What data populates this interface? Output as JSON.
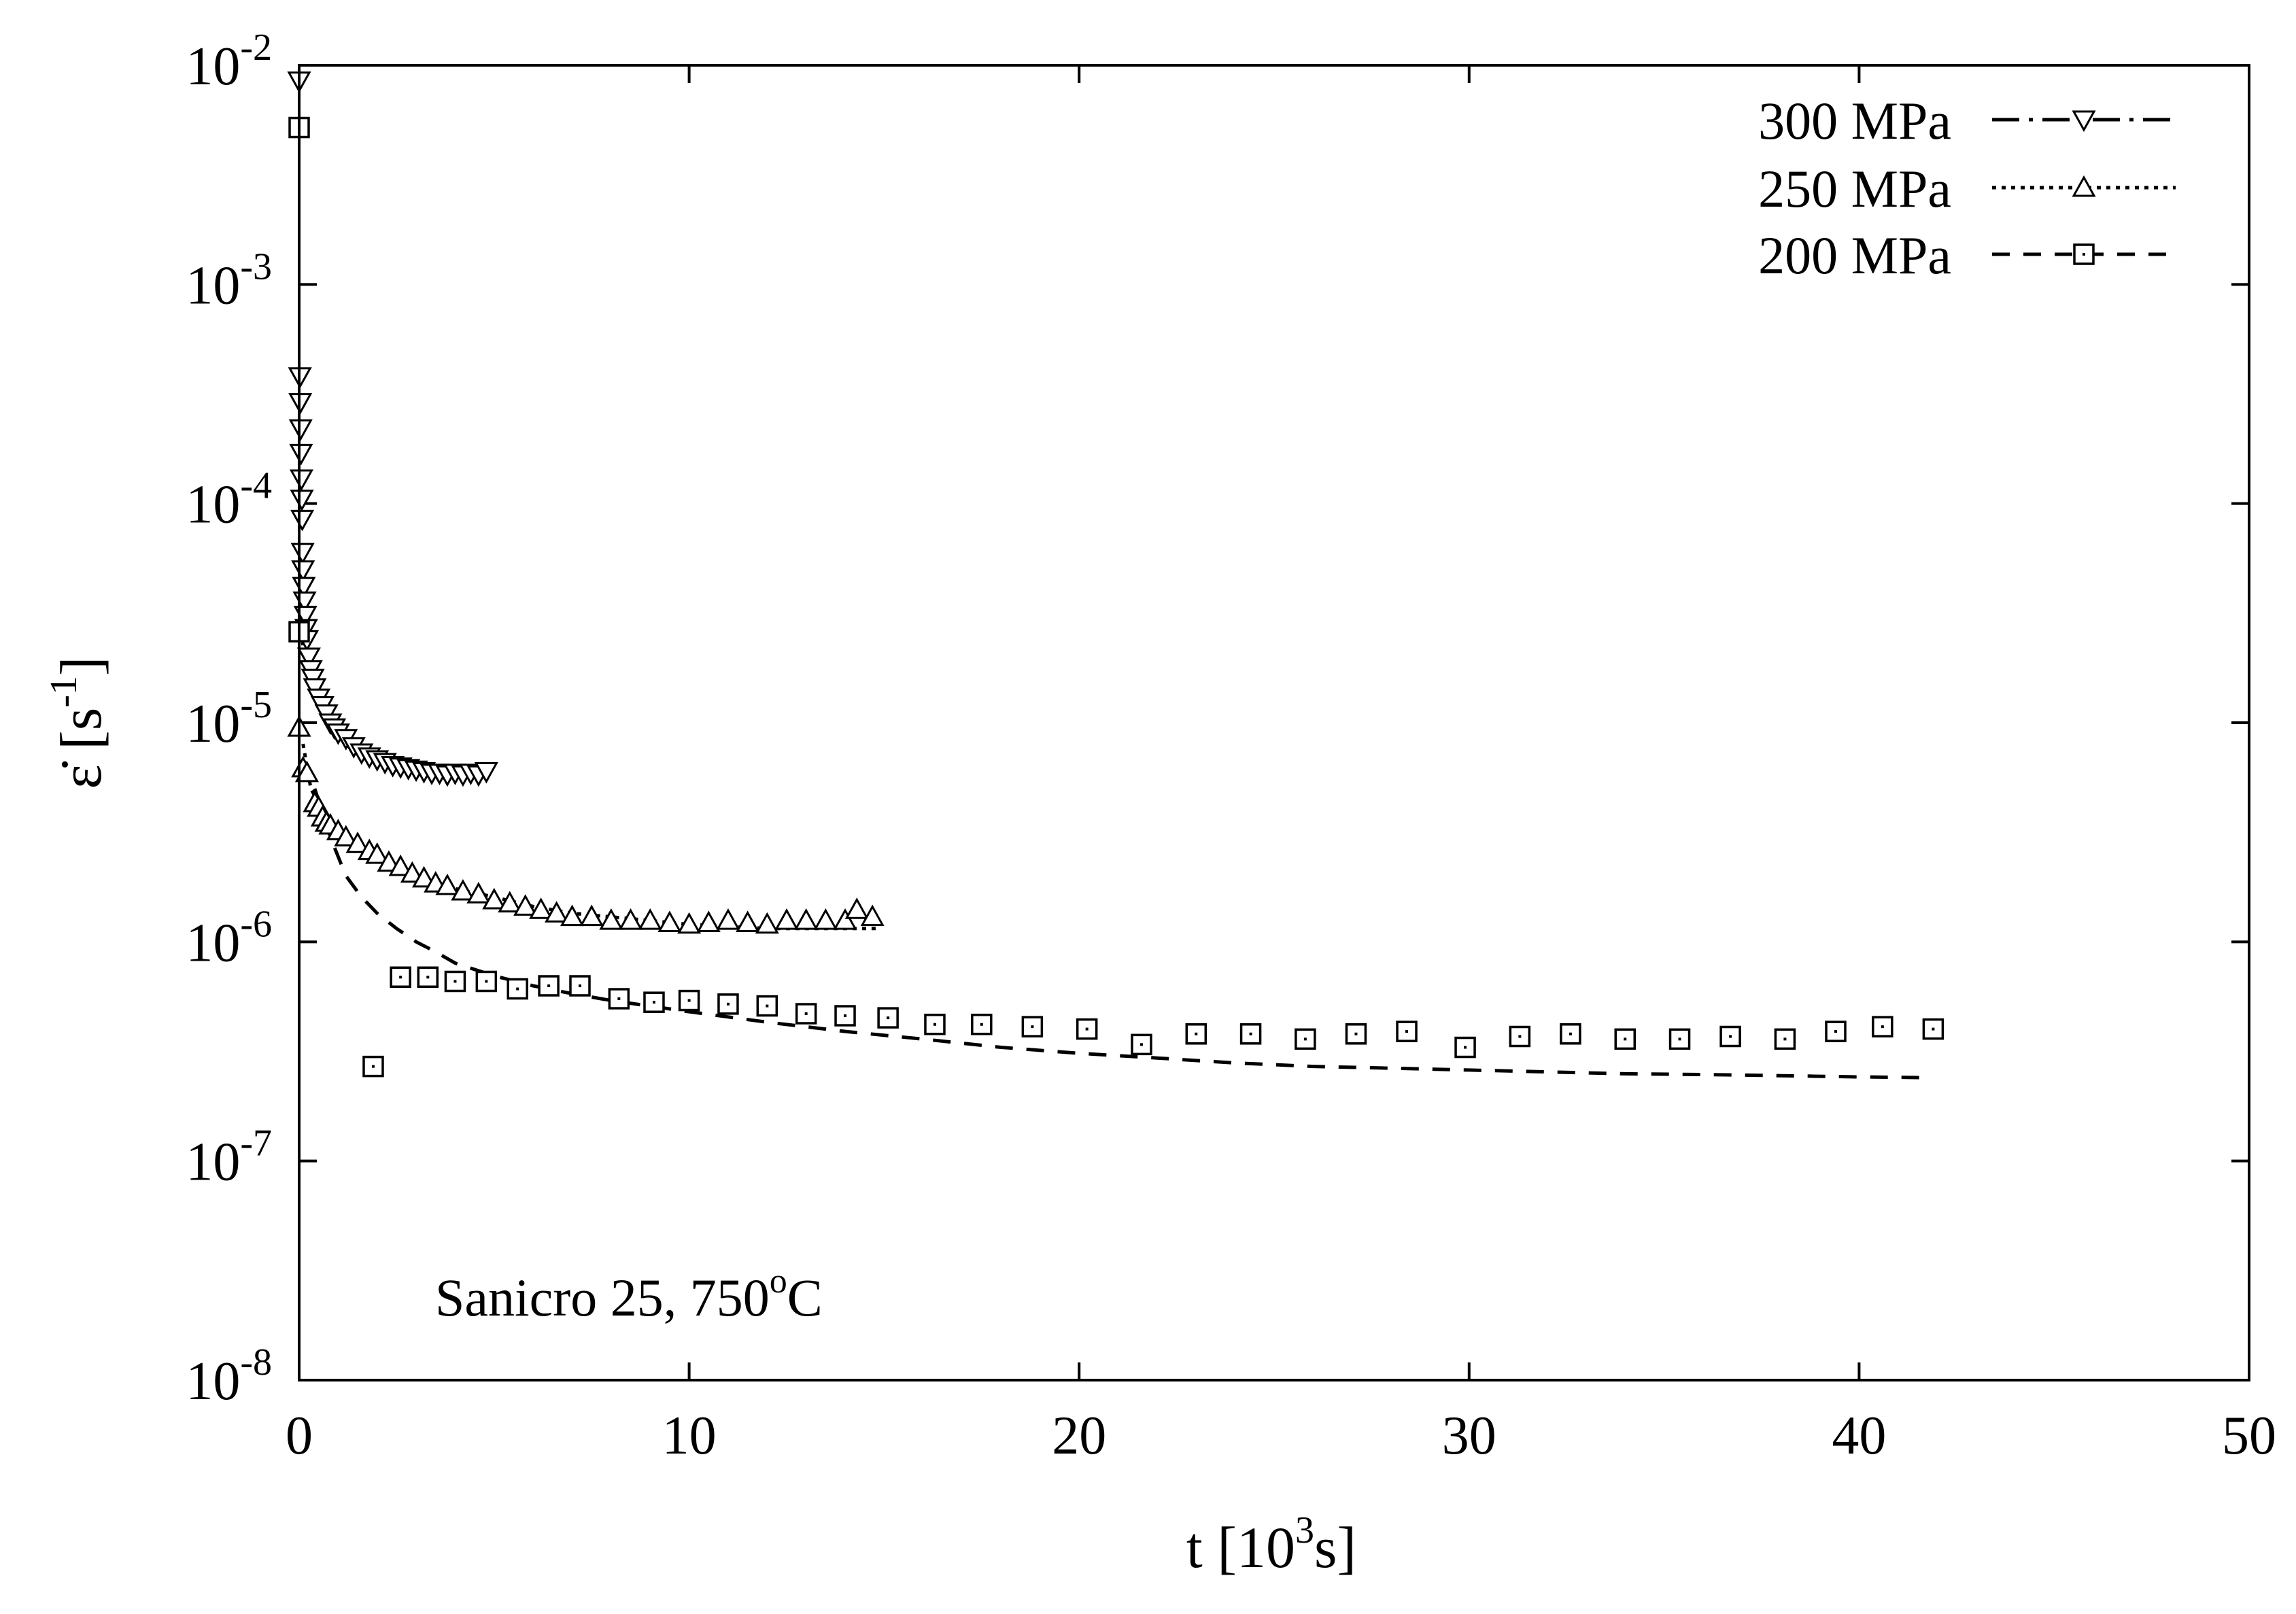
{
  "chart_data": {
    "type": "scatter",
    "xlabel": {
      "text": "t [10",
      "sup": "3",
      "tail": "s]"
    },
    "ylabel": {
      "text": "ε̇ [s",
      "sup": "-1",
      "tail": "]"
    },
    "xlim": [
      0,
      50
    ],
    "ylim": [
      1e-08,
      0.01
    ],
    "yscale": "log",
    "x_ticks": [
      "0",
      "10",
      "20",
      "30",
      "40",
      "50"
    ],
    "y_ticks": [
      {
        "base": "10",
        "exp": "-8"
      },
      {
        "base": "10",
        "exp": "-7"
      },
      {
        "base": "10",
        "exp": "-6"
      },
      {
        "base": "10",
        "exp": "-5"
      },
      {
        "base": "10",
        "exp": "-4"
      },
      {
        "base": "10",
        "exp": "-3"
      },
      {
        "base": "10",
        "exp": "-2"
      }
    ],
    "annotation": {
      "text": "Sanicro 25, 750",
      "sup": "o",
      "tail": "C"
    },
    "legend_position": "top-right",
    "grid": false,
    "series": [
      {
        "name": "300 MPa",
        "marker": "triangle-down",
        "line": "dash-dot",
        "x": [
          0.0,
          0.02,
          0.03,
          0.04,
          0.05,
          0.06,
          0.07,
          0.08,
          0.09,
          0.1,
          0.12,
          0.14,
          0.16,
          0.18,
          0.2,
          0.25,
          0.3,
          0.35,
          0.4,
          0.5,
          0.6,
          0.7,
          0.8,
          0.9,
          1.0,
          1.2,
          1.4,
          1.6,
          1.8,
          2.0,
          2.2,
          2.4,
          2.6,
          2.8,
          3.0,
          3.2,
          3.4,
          3.6,
          3.8,
          4.0,
          4.2,
          4.4,
          4.6,
          4.8
        ],
        "y": [
          0.0085,
          0.00038,
          0.00029,
          0.00022,
          0.00017,
          0.00013,
          0.000105,
          8.5e-05,
          6e-05,
          5e-05,
          4.2e-05,
          3.6e-05,
          3.1e-05,
          2.7e-05,
          2.4e-05,
          2e-05,
          1.75e-05,
          1.6e-05,
          1.45e-05,
          1.3e-05,
          1.2e-05,
          1.1e-05,
          1e-05,
          9.5e-06,
          9e-06,
          8.5e-06,
          7.8e-06,
          7.3e-06,
          7e-06,
          6.8e-06,
          6.6e-06,
          6.4e-06,
          6.3e-06,
          6.2e-06,
          6.1e-06,
          6e-06,
          5.9e-06,
          5.9e-06,
          5.8e-06,
          5.9e-06,
          5.8e-06,
          5.9e-06,
          5.8e-06,
          6e-06
        ],
        "fit_x": [
          0.05,
          0.1,
          0.2,
          0.4,
          0.7,
          1.0,
          1.5,
          2.0,
          2.5,
          3.0,
          3.5,
          4.0,
          4.5
        ],
        "fit_y": [
          3e-05,
          2.2e-05,
          1.7e-05,
          1.3e-05,
          1.05e-05,
          9e-06,
          7.5e-06,
          6.8e-06,
          6.3e-06,
          6e-06,
          5.9e-06,
          5.8e-06,
          5.8e-06
        ]
      },
      {
        "name": "250 MPa",
        "marker": "triangle-up",
        "line": "dotted",
        "x": [
          0.0,
          0.1,
          0.2,
          0.4,
          0.5,
          0.6,
          0.7,
          0.8,
          1.0,
          1.2,
          1.5,
          1.8,
          2.0,
          2.3,
          2.6,
          2.9,
          3.2,
          3.5,
          3.8,
          4.2,
          4.6,
          5.0,
          5.4,
          5.8,
          6.2,
          6.6,
          7.0,
          7.5,
          8.0,
          8.5,
          9.0,
          9.5,
          10.0,
          10.5,
          11.0,
          11.5,
          12.0,
          12.5,
          13.0,
          13.5,
          14.0,
          14.3,
          14.7
        ],
        "y": [
          9.5e-06,
          6.2e-06,
          5.9e-06,
          4.3e-06,
          4.1e-06,
          3.7e-06,
          3.5e-06,
          3.4e-06,
          3.2e-06,
          3e-06,
          2.8e-06,
          2.6e-06,
          2.5e-06,
          2.3e-06,
          2.2e-06,
          2.05e-06,
          1.95e-06,
          1.85e-06,
          1.8e-06,
          1.7e-06,
          1.65e-06,
          1.55e-06,
          1.5e-06,
          1.45e-06,
          1.4e-06,
          1.35e-06,
          1.3e-06,
          1.3e-06,
          1.25e-06,
          1.25e-06,
          1.25e-06,
          1.22e-06,
          1.2e-06,
          1.22e-06,
          1.25e-06,
          1.22e-06,
          1.2e-06,
          1.25e-06,
          1.25e-06,
          1.25e-06,
          1.25e-06,
          1.4e-06,
          1.3e-06
        ],
        "fit_x": [
          0.1,
          0.3,
          0.6,
          1.0,
          1.5,
          2.0,
          3.0,
          4.0,
          5.0,
          6.0,
          7.0,
          8.0,
          9.0,
          10.0,
          11.0,
          12.0,
          13.0,
          14.0,
          14.8
        ],
        "fit_y": [
          8e-06,
          5e-06,
          4e-06,
          3.2e-06,
          2.7e-06,
          2.4e-06,
          2e-06,
          1.75e-06,
          1.6e-06,
          1.45e-06,
          1.35e-06,
          1.3e-06,
          1.25e-06,
          1.2e-06,
          1.18e-06,
          1.15e-06,
          1.15e-06,
          1.15e-06,
          1.15e-06
        ]
      },
      {
        "name": "200 MPa",
        "marker": "square",
        "line": "dashed",
        "x": [
          0.0,
          0.0,
          1.9,
          2.6,
          3.3,
          4.0,
          4.8,
          5.6,
          6.4,
          7.2,
          8.2,
          9.1,
          10.0,
          11.0,
          12.0,
          13.0,
          14.0,
          15.1,
          16.3,
          17.5,
          18.8,
          20.2,
          21.6,
          23.0,
          24.4,
          25.8,
          27.1,
          28.4,
          29.9,
          31.3,
          32.6,
          34.0,
          35.4,
          36.7,
          38.1,
          39.4,
          40.6,
          41.9
        ],
        "y": [
          0.0052,
          2.6e-05,
          2.7e-07,
          6.9e-07,
          6.9e-07,
          6.6e-07,
          6.6e-07,
          6.1e-07,
          6.3e-07,
          6.3e-07,
          5.5e-07,
          5.3e-07,
          5.4e-07,
          5.2e-07,
          5.1e-07,
          4.7e-07,
          4.6e-07,
          4.5e-07,
          4.2e-07,
          4.2e-07,
          4.1e-07,
          4e-07,
          3.4e-07,
          3.8e-07,
          3.8e-07,
          3.6e-07,
          3.8e-07,
          3.9e-07,
          3.3e-07,
          3.7e-07,
          3.8e-07,
          3.6e-07,
          3.6e-07,
          3.7e-07,
          3.6e-07,
          3.9e-07,
          4.1e-07,
          4e-07
        ],
        "fit_x": [
          0.4,
          0.8,
          1.2,
          1.6,
          2.0,
          2.5,
          3.0,
          3.5,
          4.0,
          5.0,
          6.0,
          7.0,
          8.0,
          10.0,
          12.0,
          14.0,
          16.0,
          18.0,
          20.0,
          22.0,
          24.0,
          26.0,
          28.0,
          30.0,
          32.0,
          34.0,
          36.0,
          38.0,
          40.0,
          41.8
        ],
        "fit_y": [
          5e-06,
          3e-06,
          2e-06,
          1.6e-06,
          1.35e-06,
          1.15e-06,
          1e-06,
          9e-07,
          8e-07,
          7e-07,
          6.3e-07,
          5.8e-07,
          5.4e-07,
          4.8e-07,
          4.3e-07,
          3.9e-07,
          3.6e-07,
          3.3e-07,
          3.1e-07,
          2.95e-07,
          2.8e-07,
          2.7e-07,
          2.65e-07,
          2.6e-07,
          2.55e-07,
          2.5e-07,
          2.48e-07,
          2.45e-07,
          2.42e-07,
          2.4e-07
        ]
      }
    ]
  }
}
